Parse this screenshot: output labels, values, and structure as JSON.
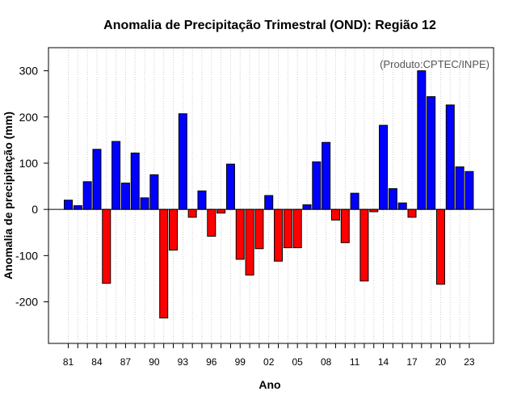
{
  "chart_data": {
    "type": "bar",
    "title": "Anomalia de Precipitação Trimestral (OND): Região 12",
    "xlabel": "Ano",
    "ylabel": "Anomalia de precipitação (mm)",
    "credit": "(Produto:CPTEC/INPE)",
    "ylim": [
      -290,
      350
    ],
    "yticks": [
      -200,
      -100,
      0,
      100,
      200,
      300
    ],
    "categories": [
      "81",
      "82",
      "83",
      "84",
      "85",
      "86",
      "87",
      "88",
      "89",
      "90",
      "91",
      "92",
      "93",
      "94",
      "95",
      "96",
      "97",
      "98",
      "99",
      "00",
      "01",
      "02",
      "03",
      "04",
      "05",
      "06",
      "07",
      "08",
      "09",
      "10",
      "11",
      "12",
      "13",
      "14",
      "15",
      "16",
      "17",
      "18",
      "19",
      "20",
      "21",
      "22",
      "23"
    ],
    "values": [
      20,
      8,
      60,
      130,
      -160,
      147,
      57,
      122,
      25,
      75,
      -235,
      -88,
      207,
      -17,
      40,
      -58,
      -8,
      98,
      -108,
      -142,
      -85,
      30,
      -112,
      -83,
      -83,
      10,
      103,
      145,
      -23,
      -72,
      35,
      -155,
      -5,
      182,
      45,
      14,
      -17,
      300,
      244,
      -162,
      226,
      92,
      82
    ],
    "xtick_labels": [
      "81",
      "84",
      "87",
      "90",
      "93",
      "96",
      "99",
      "02",
      "05",
      "08",
      "11",
      "14",
      "17",
      "20",
      "23"
    ],
    "colors": {
      "positive": "#0000FF",
      "negative": "#FF0000",
      "zero_line": "#000000",
      "grid": "#cccccc"
    }
  }
}
